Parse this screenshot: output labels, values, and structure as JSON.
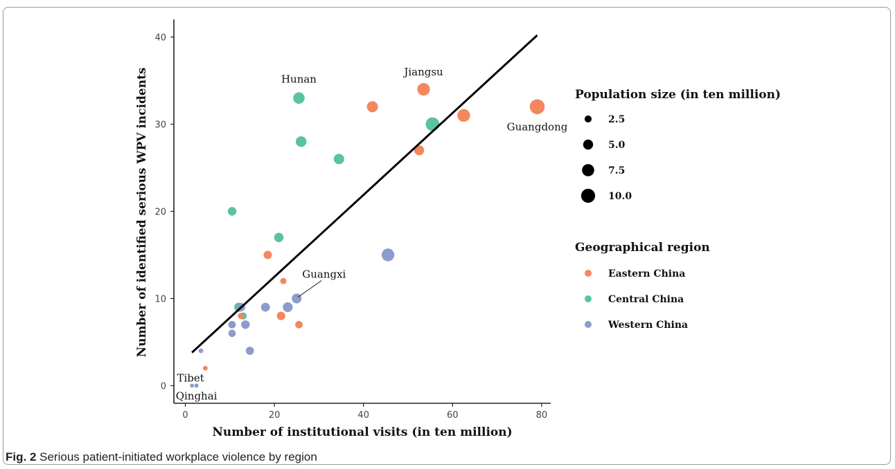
{
  "chart_data": {
    "type": "scatter",
    "xlabel": "Number of institutional visits (in ten million)",
    "ylabel": "Number of identified serious WPV incidents",
    "xlim": [
      -2,
      82
    ],
    "ylim": [
      -2,
      42
    ],
    "x_ticks": [
      0,
      20,
      40,
      60,
      80
    ],
    "y_ticks": [
      0,
      10,
      20,
      30,
      40
    ],
    "grid": false,
    "size_legend": {
      "title": "Population size (in ten million)",
      "values": [
        2.5,
        5.0,
        7.5,
        10.0
      ],
      "labels": [
        "2.5",
        "5.0",
        "7.5",
        "10.0"
      ]
    },
    "color_legend": {
      "title": "Geographical region",
      "groups": [
        {
          "name": "Eastern China",
          "color": "#f4875e"
        },
        {
          "name": "Central China",
          "color": "#5bc39d"
        },
        {
          "name": "Western China",
          "color": "#8c9ccc"
        }
      ]
    },
    "trend_line": {
      "x": [
        1.5,
        79
      ],
      "y": [
        3.8,
        40.2
      ],
      "color": "#000000"
    },
    "points": [
      {
        "x": 79,
        "y": 32,
        "size": 11.3,
        "region": "Eastern China",
        "label": "Guangdong"
      },
      {
        "x": 62.5,
        "y": 31,
        "size": 8.2,
        "region": "Eastern China",
        "label": ""
      },
      {
        "x": 53.5,
        "y": 34,
        "size": 8.0,
        "region": "Eastern China",
        "label": "Jiangsu"
      },
      {
        "x": 42,
        "y": 32,
        "size": 6.3,
        "region": "Eastern China",
        "label": ""
      },
      {
        "x": 52.5,
        "y": 27,
        "size": 5.0,
        "region": "Eastern China",
        "label": ""
      },
      {
        "x": 18.5,
        "y": 15,
        "size": 3.5,
        "region": "Eastern China",
        "label": ""
      },
      {
        "x": 22,
        "y": 12,
        "size": 2.0,
        "region": "Eastern China",
        "label": ""
      },
      {
        "x": 21.5,
        "y": 8,
        "size": 3.6,
        "region": "Eastern China",
        "label": ""
      },
      {
        "x": 25.5,
        "y": 7,
        "size": 2.8,
        "region": "Eastern China",
        "label": ""
      },
      {
        "x": 12.5,
        "y": 8,
        "size": 2.0,
        "region": "Eastern China",
        "label": ""
      },
      {
        "x": 4.5,
        "y": 2,
        "size": 1.1,
        "region": "Eastern China",
        "label": ""
      },
      {
        "x": 55.5,
        "y": 30,
        "size": 9.6,
        "region": "Central China",
        "label": ""
      },
      {
        "x": 25.5,
        "y": 33,
        "size": 6.7,
        "region": "Central China",
        "label": "Hunan"
      },
      {
        "x": 26,
        "y": 28,
        "size": 5.8,
        "region": "Central China",
        "label": ""
      },
      {
        "x": 34.5,
        "y": 26,
        "size": 5.5,
        "region": "Central China",
        "label": ""
      },
      {
        "x": 10.5,
        "y": 20,
        "size": 3.8,
        "region": "Central China",
        "label": ""
      },
      {
        "x": 21,
        "y": 17,
        "size": 4.5,
        "region": "Central China",
        "label": ""
      },
      {
        "x": 12,
        "y": 9,
        "size": 4.3,
        "region": "Central China",
        "label": ""
      },
      {
        "x": 13,
        "y": 8,
        "size": 2.5,
        "region": "Central China",
        "label": ""
      },
      {
        "x": 45.5,
        "y": 15,
        "size": 8.3,
        "region": "Western China",
        "label": ""
      },
      {
        "x": 25,
        "y": 10,
        "size": 4.9,
        "region": "Western China",
        "label": "Guangxi"
      },
      {
        "x": 23,
        "y": 9,
        "size": 4.9,
        "region": "Western China",
        "label": ""
      },
      {
        "x": 18,
        "y": 9,
        "size": 4.0,
        "region": "Western China",
        "label": ""
      },
      {
        "x": 12.5,
        "y": 9,
        "size": 3.6,
        "region": "Western China",
        "label": ""
      },
      {
        "x": 13.5,
        "y": 7,
        "size": 3.8,
        "region": "Western China",
        "label": ""
      },
      {
        "x": 10.5,
        "y": 7,
        "size": 2.9,
        "region": "Western China",
        "label": ""
      },
      {
        "x": 10.5,
        "y": 6,
        "size": 2.7,
        "region": "Western China",
        "label": ""
      },
      {
        "x": 14.5,
        "y": 4,
        "size": 3.4,
        "region": "Western China",
        "label": ""
      },
      {
        "x": 3.5,
        "y": 4,
        "size": 1.1,
        "region": "Western China",
        "label": ""
      },
      {
        "x": 2.5,
        "y": 0,
        "size": 0.9,
        "region": "Western China",
        "label": "Qinghai"
      },
      {
        "x": 1.5,
        "y": 0,
        "size": 0.8,
        "region": "Western China",
        "label": "Tibet"
      }
    ]
  },
  "caption": {
    "label": "Fig. 2",
    "text": " Serious patient-initiated workplace violence by region"
  }
}
